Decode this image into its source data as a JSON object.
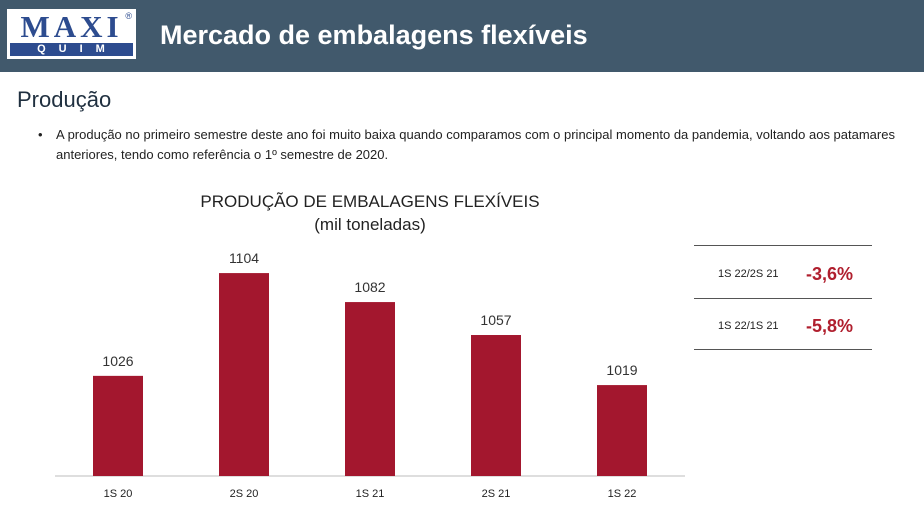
{
  "header": {
    "logo_top": "MAXI",
    "logo_registered": "®",
    "logo_bottom": "QUIM",
    "title": "Mercado de embalagens flexíveis",
    "bar_color": "#41596c"
  },
  "section_title": "Produção",
  "bullet": {
    "marker": "•",
    "text": "A produção no primeiro semestre deste ano foi muito baixa quando comparamos com o principal momento da pandemia, voltando aos patamares anteriores, tendo como referência o 1º semestre de 2020."
  },
  "chart_data": {
    "type": "bar",
    "title": "PRODUÇÃO DE EMBALAGENS FLEXÍVEIS",
    "subtitle": "(mil toneladas)",
    "categories": [
      "1S 20",
      "2S 20",
      "1S 21",
      "2S 21",
      "1S 22"
    ],
    "values": [
      1026,
      1104,
      1082,
      1057,
      1019
    ],
    "data_labels": [
      "1026",
      "1104",
      "1082",
      "1057",
      "1019"
    ],
    "ylim": [
      950,
      1120
    ],
    "bar_color": "#a3172e",
    "grid": false,
    "legend": "none"
  },
  "variations": [
    {
      "label": "1S 22/2S 21",
      "value": "-3,6%"
    },
    {
      "label": "1S 22/1S 21",
      "value": "-5,8%"
    }
  ],
  "colors": {
    "accent_red": "#b01f2e"
  }
}
